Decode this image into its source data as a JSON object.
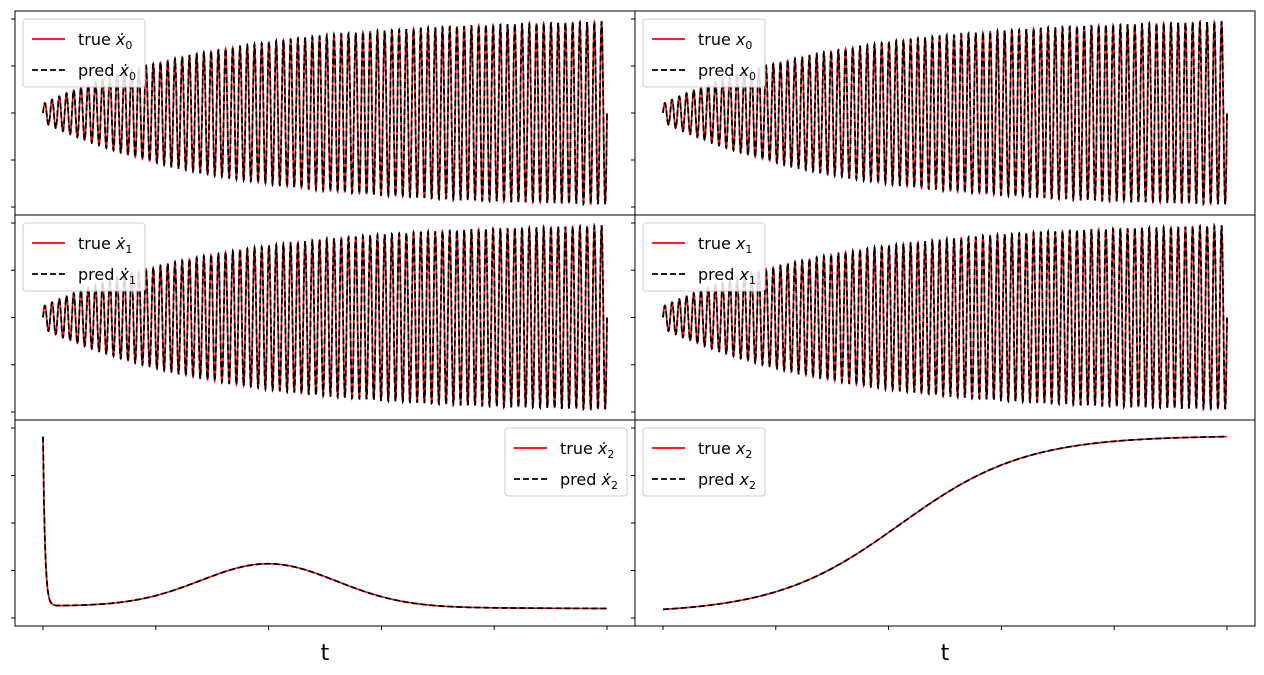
{
  "chart_data": [
    {
      "type": "line",
      "panel": "top-left",
      "legend_position": "upper-left",
      "xlabel": "",
      "ylabel": "",
      "tick_labels_shown": false,
      "series": [
        {
          "name": "true ẋ0",
          "color": "#ff0000",
          "style": "solid"
        },
        {
          "name": "pred ẋ0",
          "color": "#000000",
          "style": "dashed"
        }
      ],
      "legend": [
        {
          "pre": "true ",
          "var": "ẋ",
          "sub": "0"
        },
        {
          "pre": "pred ",
          "var": "ẋ",
          "sub": "0"
        }
      ],
      "signal": {
        "kind": "growing-oscillation",
        "cycles": 78,
        "start_amplitude": 0.1,
        "end_amplitude": 1.0,
        "center": 0
      }
    },
    {
      "type": "line",
      "panel": "top-right",
      "legend_position": "upper-left",
      "xlabel": "",
      "ylabel": "",
      "tick_labels_shown": false,
      "series": [
        {
          "name": "true x0",
          "color": "#ff0000",
          "style": "solid"
        },
        {
          "name": "pred x0",
          "color": "#000000",
          "style": "dashed"
        }
      ],
      "legend": [
        {
          "pre": "true ",
          "var": "x",
          "sub": "0"
        },
        {
          "pre": "pred ",
          "var": "x",
          "sub": "0"
        }
      ],
      "signal": {
        "kind": "growing-oscillation",
        "cycles": 78,
        "start_amplitude": 0.1,
        "end_amplitude": 1.0,
        "center": 0
      }
    },
    {
      "type": "line",
      "panel": "middle-left",
      "legend_position": "upper-left",
      "xlabel": "",
      "ylabel": "",
      "tick_labels_shown": false,
      "series": [
        {
          "name": "true ẋ1",
          "color": "#ff0000",
          "style": "solid"
        },
        {
          "name": "pred ẋ1",
          "color": "#000000",
          "style": "dashed"
        }
      ],
      "legend": [
        {
          "pre": "true ",
          "var": "ẋ",
          "sub": "1"
        },
        {
          "pre": "pred ",
          "var": "ẋ",
          "sub": "1"
        }
      ],
      "signal": {
        "kind": "growing-oscillation",
        "cycles": 78,
        "start_amplitude": 0.12,
        "end_amplitude": 1.0,
        "center": 0
      }
    },
    {
      "type": "line",
      "panel": "middle-right",
      "legend_position": "upper-left",
      "xlabel": "",
      "ylabel": "",
      "tick_labels_shown": false,
      "series": [
        {
          "name": "true x1",
          "color": "#ff0000",
          "style": "solid"
        },
        {
          "name": "pred x1",
          "color": "#000000",
          "style": "dashed"
        }
      ],
      "legend": [
        {
          "pre": "true ",
          "var": "x",
          "sub": "1"
        },
        {
          "pre": "pred ",
          "var": "x",
          "sub": "1"
        }
      ],
      "signal": {
        "kind": "growing-oscillation",
        "cycles": 78,
        "start_amplitude": 0.12,
        "end_amplitude": 1.0,
        "center": 0
      }
    },
    {
      "type": "line",
      "panel": "bottom-left",
      "legend_position": "upper-right",
      "xlabel": "t",
      "ylabel": "",
      "tick_labels_shown": false,
      "series": [
        {
          "name": "true ẋ2",
          "color": "#ff0000",
          "style": "solid"
        },
        {
          "name": "pred ẋ2",
          "color": "#000000",
          "style": "dashed"
        }
      ],
      "legend": [
        {
          "pre": "true ",
          "var": "ẋ",
          "sub": "2"
        },
        {
          "pre": "pred ",
          "var": "ẋ",
          "sub": "2"
        }
      ],
      "signal": {
        "kind": "spike-then-hump",
        "ylim": [
          -0.05,
          1.05
        ],
        "spike_peak": 1.0,
        "baseline": 0.02,
        "hump_peak": 0.25,
        "hump_center": 0.4,
        "hump_width": 0.17,
        "end_value": 0.005
      }
    },
    {
      "type": "line",
      "panel": "bottom-right",
      "legend_position": "upper-left",
      "xlabel": "t",
      "ylabel": "",
      "tick_labels_shown": false,
      "series": [
        {
          "name": "true x2",
          "color": "#ff0000",
          "style": "solid"
        },
        {
          "name": "pred x2",
          "color": "#000000",
          "style": "dashed"
        }
      ],
      "legend": [
        {
          "pre": "true ",
          "var": "x",
          "sub": "2"
        },
        {
          "pre": "pred ",
          "var": "x",
          "sub": "2"
        }
      ],
      "signal": {
        "kind": "sigmoid",
        "ylim": [
          -0.05,
          1.05
        ],
        "start_value": 0.0,
        "end_value": 1.0,
        "midpoint": 0.42,
        "steepness": 9
      }
    }
  ]
}
